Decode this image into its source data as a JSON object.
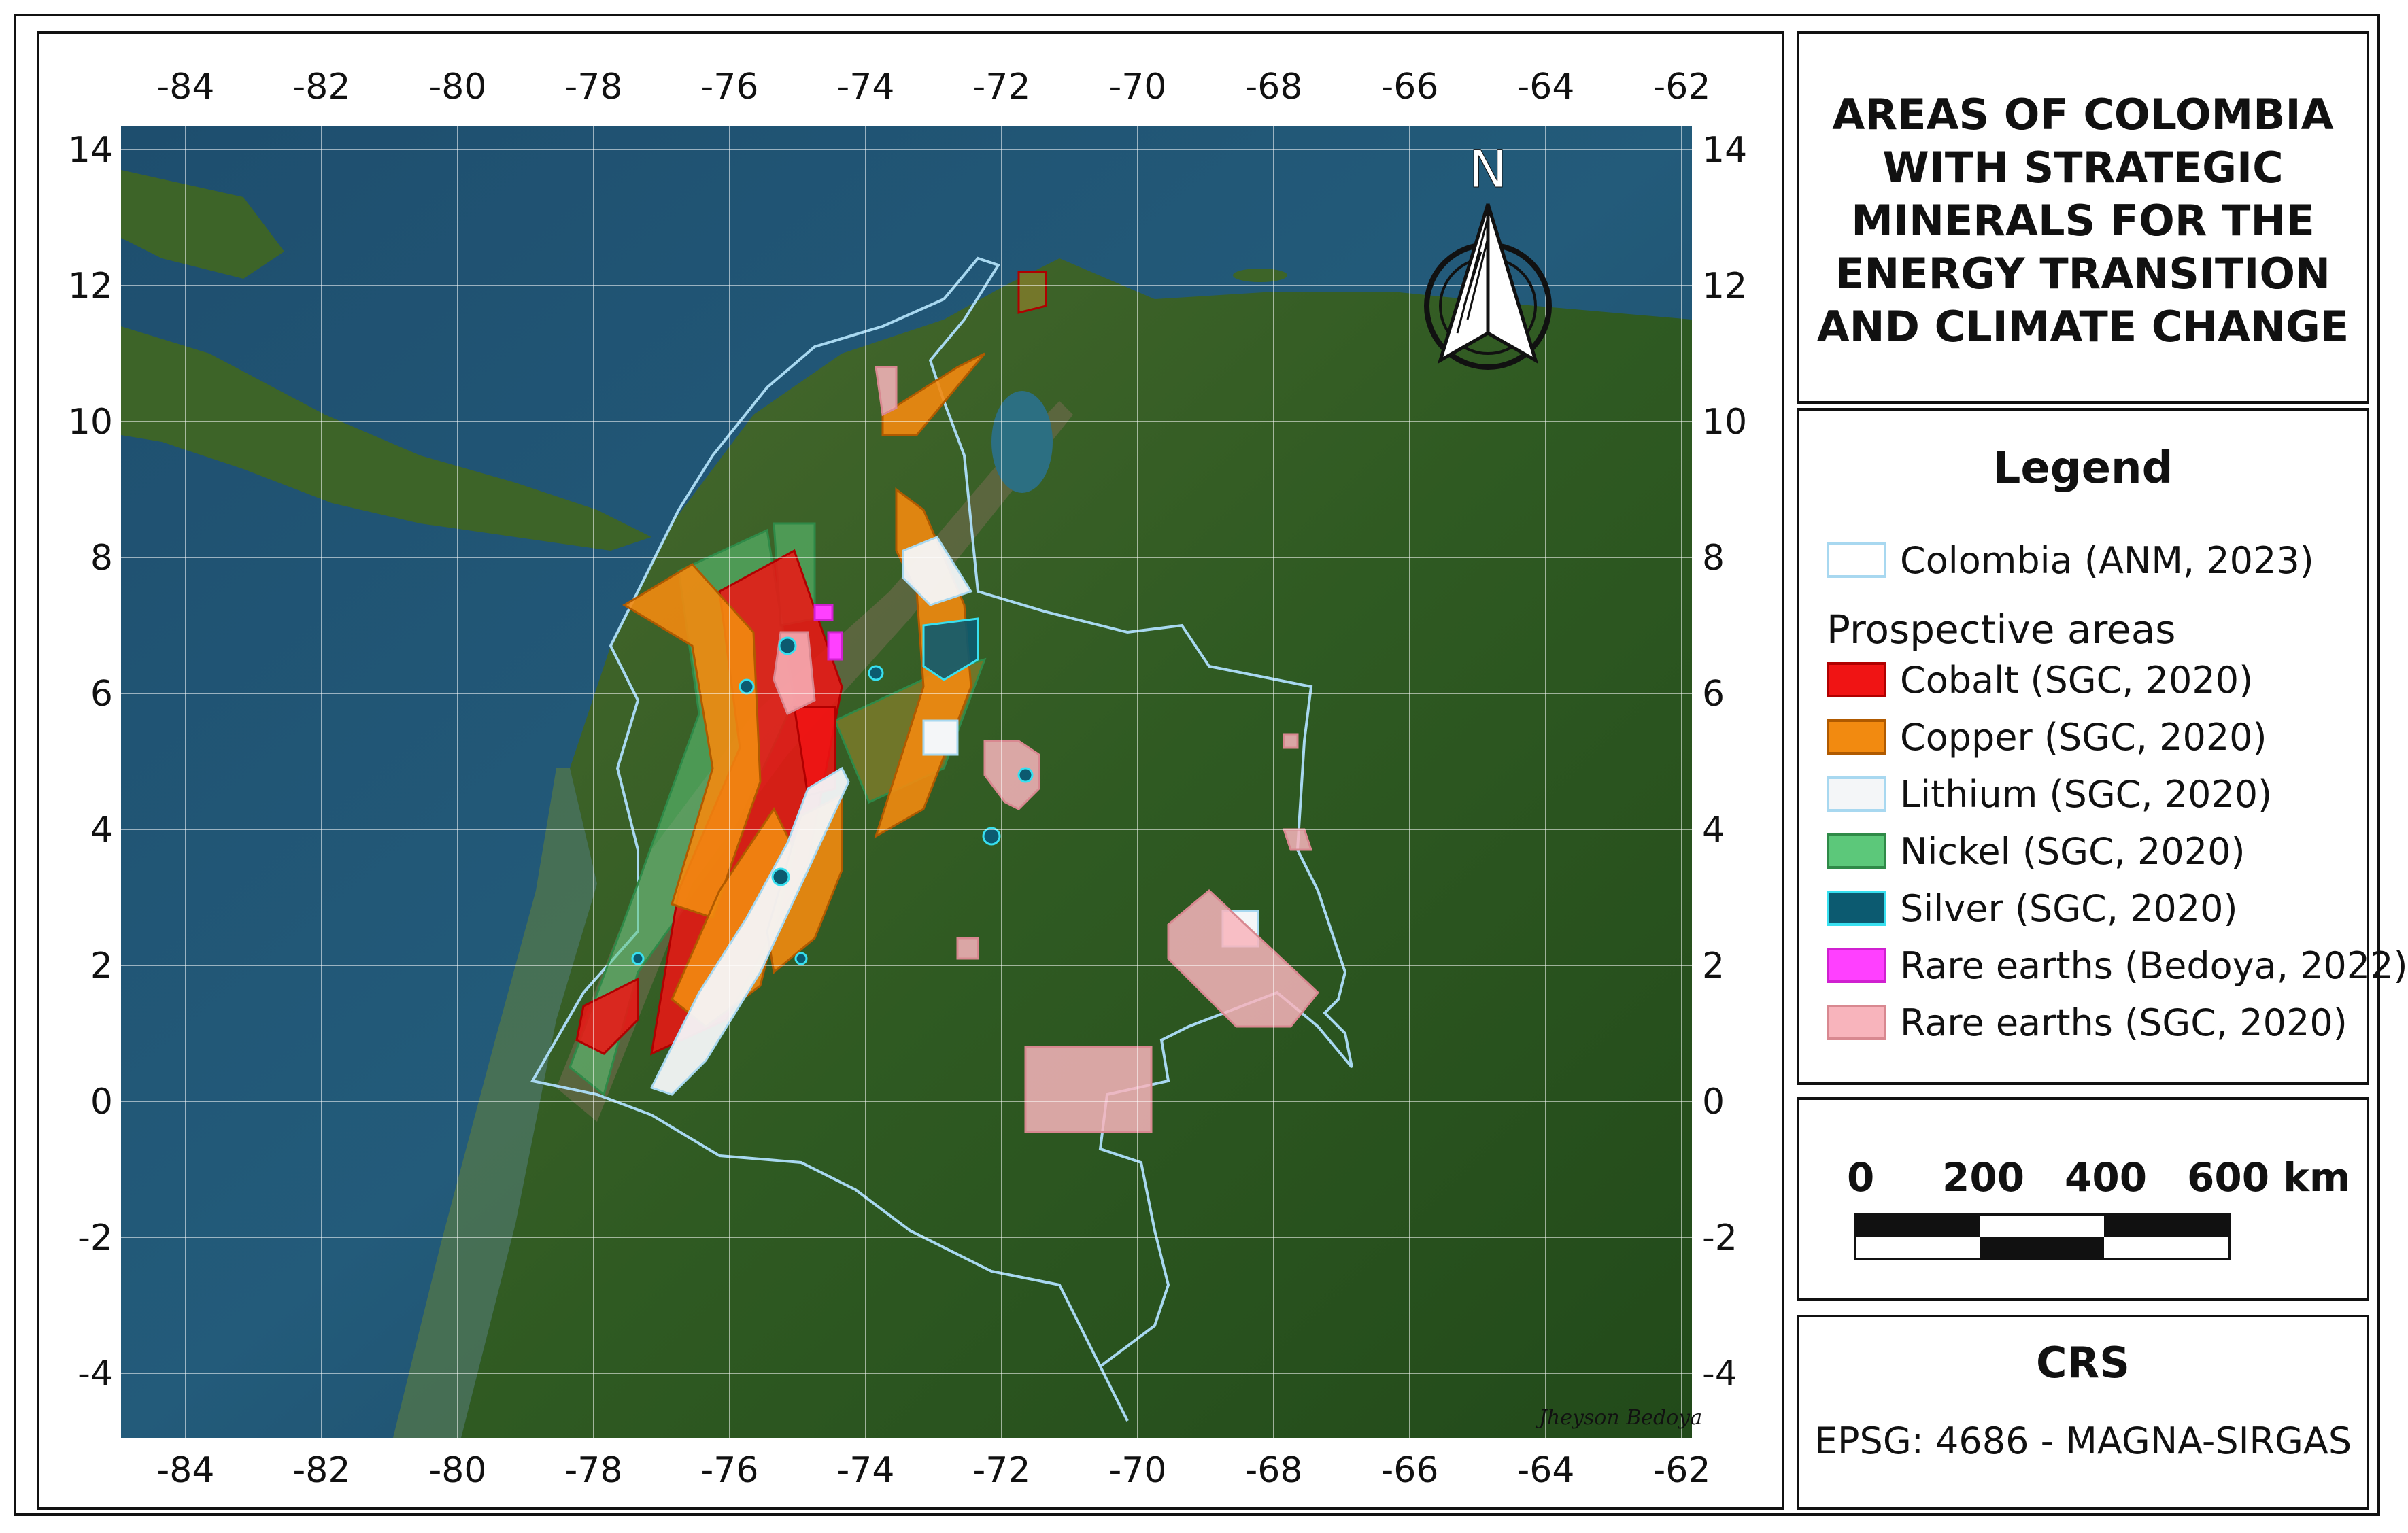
{
  "title": "AREAS OF COLOMBIA WITH STRATEGIC MINERALS FOR THE ENERGY TRANSITION AND CLIMATE CHANGE",
  "north_arrow": {
    "label": "N",
    "icon": "north-arrow-icon"
  },
  "axes": {
    "lon_ticks": [
      "-84",
      "-82",
      "-80",
      "-78",
      "-76",
      "-74",
      "-72",
      "-70",
      "-68",
      "-66",
      "-64",
      "-62"
    ],
    "lat_ticks": [
      "14",
      "12",
      "10",
      "8",
      "6",
      "4",
      "2",
      "0",
      "-2",
      "-4"
    ]
  },
  "legend": {
    "title": "Legend",
    "boundary": {
      "label": "Colombia (ANM, 2023)",
      "color": "#a8d8f0"
    },
    "section_label": "Prospective areas",
    "items": [
      {
        "label": "Cobalt (SGC, 2020)",
        "fill": "#f01414",
        "stroke": "#b00000"
      },
      {
        "label": "Copper (SGC, 2020)",
        "fill": "#f28a10",
        "stroke": "#b05a00"
      },
      {
        "label": "Lithium (SGC, 2020)",
        "fill": "#f4f6f8",
        "stroke": "#a8d8f0"
      },
      {
        "label": "Nickel (SGC, 2020)",
        "fill": "#5cc87a",
        "stroke": "#2f8a48"
      },
      {
        "label": "Silver (SGC, 2020)",
        "fill": "#0c5a70",
        "stroke": "#38e0f0"
      },
      {
        "label": "Rare earths (Bedoya, 2022)",
        "fill": "#ff40ff",
        "stroke": "#d020d0"
      },
      {
        "label": "Rare earths (SGC, 2020)",
        "fill": "#f8b4bc",
        "stroke": "#d88890"
      }
    ]
  },
  "scale_bar": {
    "labels": [
      "0",
      "200",
      "400",
      "600 km"
    ]
  },
  "crs": {
    "title": "CRS",
    "value": "EPSG: 4686 - MAGNA-SIRGAS"
  },
  "author_signature": "Jheyson Bedoya"
}
